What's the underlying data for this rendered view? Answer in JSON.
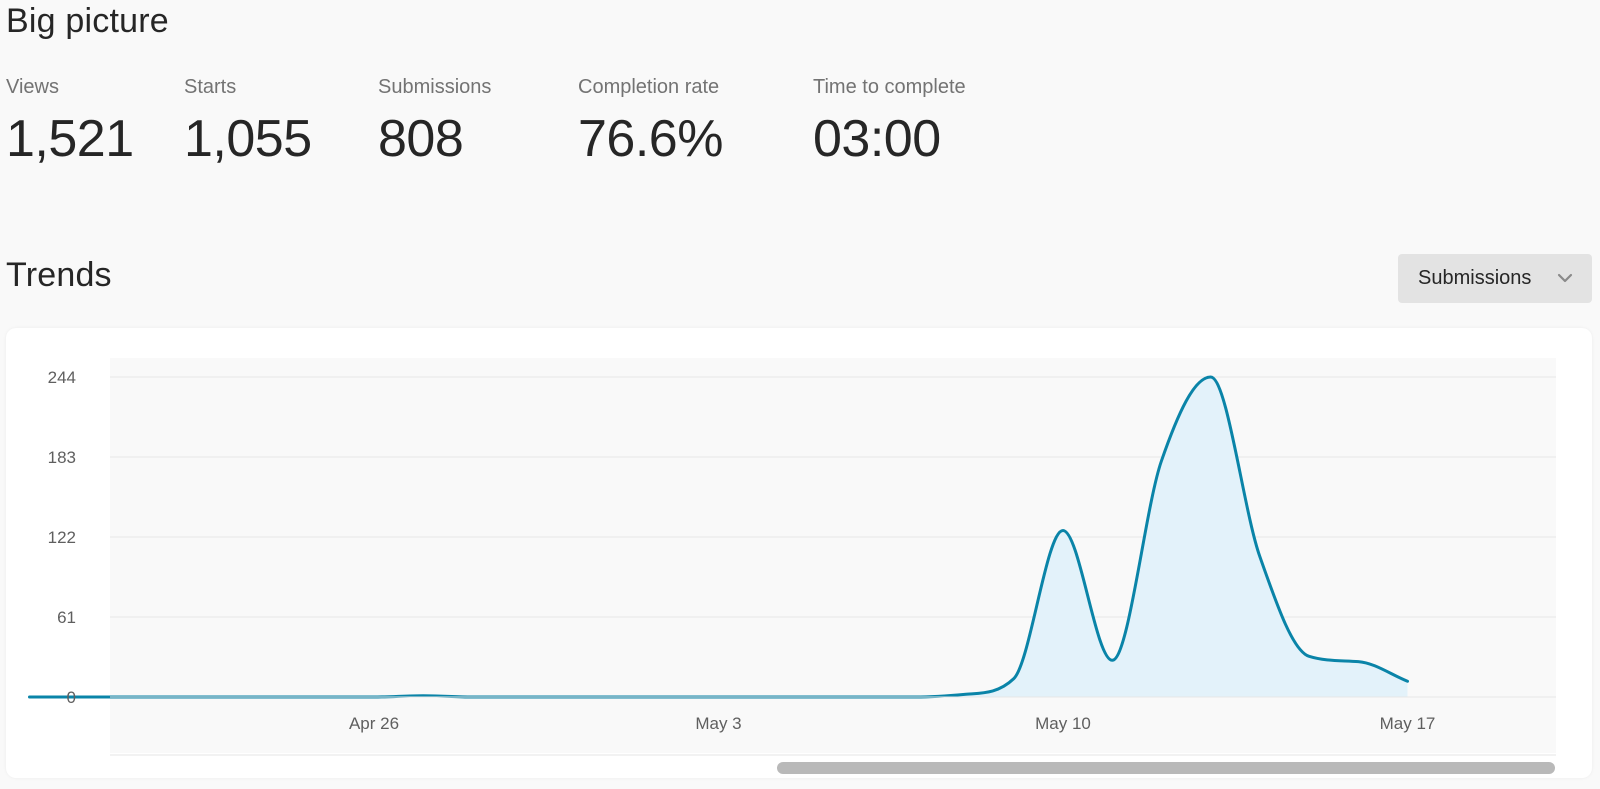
{
  "big_picture": {
    "title": "Big picture",
    "stats": [
      {
        "label": "Views",
        "value": "1,521"
      },
      {
        "label": "Starts",
        "value": "1,055"
      },
      {
        "label": "Submissions",
        "value": "808"
      },
      {
        "label": "Completion rate",
        "value": "76.6%"
      },
      {
        "label": "Time to complete",
        "value": "03:00"
      }
    ]
  },
  "trends": {
    "title": "Trends",
    "metric_select": {
      "value": "Submissions",
      "icon": "chevron-down-icon"
    }
  },
  "colors": {
    "line": "#0a84a8",
    "area": "#e3f2fa",
    "plot_bg": "#f9f9f9",
    "grid": "#e6e6e6",
    "scroll_thumb": "#b9b9b9"
  },
  "chart_data": {
    "type": "area",
    "y_ticks": [
      "244",
      "183",
      "122",
      "61",
      "0"
    ],
    "x_ticks": [
      "Apr 26",
      "May 3",
      "May 10",
      "May 17"
    ],
    "ylim": [
      0,
      244
    ],
    "grid": true,
    "series": [
      {
        "values": [
          [
            "2024-04-19",
            0
          ],
          [
            "2024-04-20",
            0
          ],
          [
            "2024-04-21",
            0
          ],
          [
            "2024-04-22",
            0
          ],
          [
            "2024-04-23",
            0
          ],
          [
            "2024-04-24",
            0
          ],
          [
            "2024-04-25",
            0
          ],
          [
            "2024-04-26",
            0
          ],
          [
            "2024-04-27",
            1
          ],
          [
            "2024-04-28",
            0
          ],
          [
            "2024-04-29",
            0
          ],
          [
            "2024-04-30",
            0
          ],
          [
            "2024-05-01",
            0
          ],
          [
            "2024-05-02",
            0
          ],
          [
            "2024-05-03",
            0
          ],
          [
            "2024-05-04",
            0
          ],
          [
            "2024-05-05",
            0
          ],
          [
            "2024-05-06",
            0
          ],
          [
            "2024-05-07",
            0
          ],
          [
            "2024-05-08",
            2
          ],
          [
            "2024-05-09",
            14
          ],
          [
            "2024-05-10",
            127
          ],
          [
            "2024-05-11",
            28
          ],
          [
            "2024-05-12",
            180
          ],
          [
            "2024-05-13",
            244
          ],
          [
            "2024-05-14",
            107
          ],
          [
            "2024-05-15",
            31
          ],
          [
            "2024-05-16",
            27
          ],
          [
            "2024-05-17",
            12
          ]
        ]
      }
    ]
  }
}
